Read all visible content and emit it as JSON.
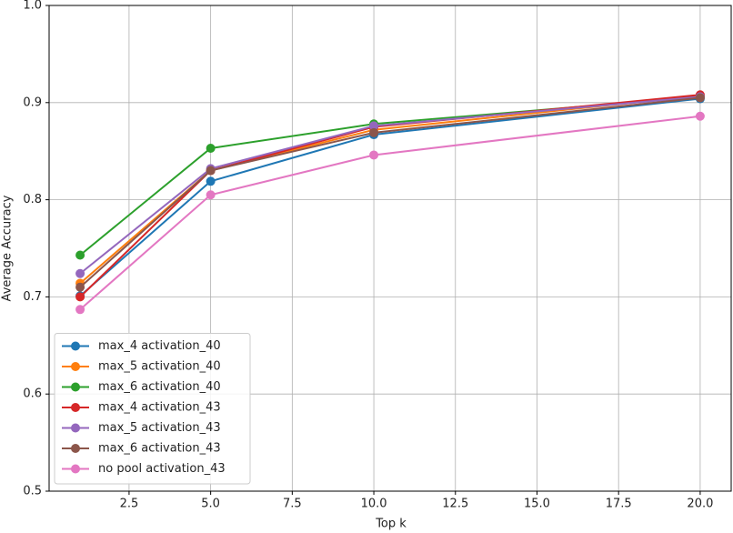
{
  "chart_data": {
    "type": "line",
    "xlabel": "Top k",
    "ylabel": "Average Accuracy",
    "x": [
      1,
      5,
      10,
      20
    ],
    "series": [
      {
        "name": "max_4 activation_40",
        "color": "#1f77b4",
        "values": [
          0.701,
          0.819,
          0.867,
          0.904
        ]
      },
      {
        "name": "max_5 activation_40",
        "color": "#ff7f0e",
        "values": [
          0.714,
          0.83,
          0.872,
          0.907
        ]
      },
      {
        "name": "max_6 activation_40",
        "color": "#2ca02c",
        "values": [
          0.743,
          0.853,
          0.878,
          0.906
        ]
      },
      {
        "name": "max_4 activation_43",
        "color": "#d62728",
        "values": [
          0.7,
          0.83,
          0.875,
          0.908
        ]
      },
      {
        "name": "max_5 activation_43",
        "color": "#9467bd",
        "values": [
          0.724,
          0.832,
          0.876,
          0.906
        ]
      },
      {
        "name": "max_6 activation_43",
        "color": "#8c564b",
        "values": [
          0.71,
          0.83,
          0.869,
          0.905
        ]
      },
      {
        "name": "no pool activation_43",
        "color": "#e377c2",
        "values": [
          0.687,
          0.805,
          0.846,
          0.886
        ]
      }
    ],
    "xlim": [
      0.05,
      20.95
    ],
    "xticks": [
      2.5,
      {
        "value": 5,
        "label": "5.0"
      },
      7.5,
      {
        "value": 10,
        "label": "10.0"
      },
      12.5,
      {
        "value": 15,
        "label": "15.0"
      },
      17.5,
      {
        "value": 20,
        "label": "20.0"
      }
    ],
    "ylim": [
      0.5,
      1
    ],
    "yticks": [
      0.5,
      0.6,
      0.7,
      0.8,
      0.9,
      {
        "value": 1,
        "label": "1.0"
      }
    ],
    "grid": true,
    "legend": "lower left"
  }
}
